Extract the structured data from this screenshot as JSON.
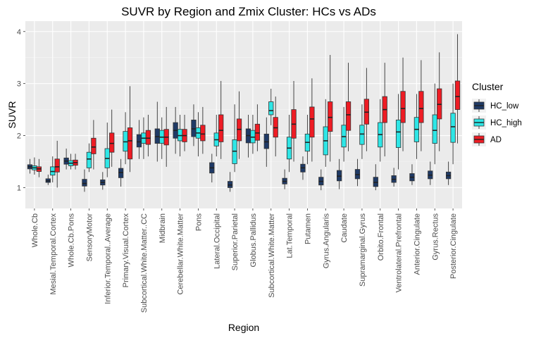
{
  "chart_data": {
    "type": "boxplot",
    "title": "SUVR by Region and Zmix Cluster: HCs vs ADs",
    "xlabel": "Region",
    "ylabel": "SUVR",
    "ylim": [
      0.6,
      4.2
    ],
    "yticks": [
      1,
      2,
      3,
      4
    ],
    "grid": true,
    "legend": {
      "title": "Cluster",
      "position": "right"
    },
    "categories": [
      "Whole.Cb",
      "Mesial.Temporal.Cortex",
      "Whole.Cb.Pons",
      "SensoryMotor",
      "Inferior.Temporal..Average",
      "Primary.Visual.Cortex",
      "Subcortical.White.Matter..CC",
      "Midbrain",
      "Cerebellar.White.Matter",
      "Pons",
      "Lateral.Occipital",
      "Superior.Parietal",
      "Globus.Pallidus",
      "Subcortical.White.Matter",
      "Lat.Temporal",
      "Putamen",
      "Gyrus.Angularis",
      "Caudate",
      "Supramarginal.Gyrus",
      "Orbito.Frontal",
      "Ventrolateral.Prefrontal",
      "Anterior.Cingulate",
      "Gyrus.Rectus",
      "Posterior.Cingulate"
    ],
    "series": [
      {
        "name": "HC_low",
        "color": "#1f3a66",
        "stats": [
          [
            1.27,
            1.36,
            1.4,
            1.44,
            1.55
          ],
          [
            1.05,
            1.1,
            1.13,
            1.17,
            1.25
          ],
          [
            1.35,
            1.45,
            1.51,
            1.57,
            1.75
          ],
          [
            0.92,
            1.03,
            1.08,
            1.16,
            1.35
          ],
          [
            0.96,
            1.05,
            1.1,
            1.15,
            1.3
          ],
          [
            1.02,
            1.19,
            1.29,
            1.37,
            1.55
          ],
          [
            1.55,
            1.78,
            1.88,
            2.02,
            2.3
          ],
          [
            1.5,
            1.85,
            1.98,
            2.13,
            2.65
          ],
          [
            1.65,
            1.95,
            2.1,
            2.25,
            2.55
          ],
          [
            1.8,
            1.98,
            2.13,
            2.3,
            2.6
          ],
          [
            1.1,
            1.28,
            1.38,
            1.48,
            1.65
          ],
          [
            0.92,
            1.0,
            1.05,
            1.12,
            1.3
          ],
          [
            1.58,
            1.86,
            2.0,
            2.13,
            2.4
          ],
          [
            1.4,
            1.75,
            1.88,
            2.03,
            2.35
          ],
          [
            0.97,
            1.07,
            1.12,
            1.18,
            1.35
          ],
          [
            1.15,
            1.3,
            1.38,
            1.45,
            1.6
          ],
          [
            0.95,
            1.05,
            1.12,
            1.2,
            1.35
          ],
          [
            0.97,
            1.13,
            1.22,
            1.33,
            1.55
          ],
          [
            1.03,
            1.17,
            1.25,
            1.35,
            1.55
          ],
          [
            0.95,
            1.02,
            1.1,
            1.2,
            1.45
          ],
          [
            1.02,
            1.1,
            1.16,
            1.23,
            1.38
          ],
          [
            1.05,
            1.13,
            1.2,
            1.27,
            1.45
          ],
          [
            1.05,
            1.17,
            1.24,
            1.32,
            1.5
          ],
          [
            1.05,
            1.17,
            1.23,
            1.3,
            1.5
          ]
        ]
      },
      {
        "name": "HC_high",
        "color": "#2ee6e6",
        "stats": [
          [
            1.25,
            1.34,
            1.38,
            1.42,
            1.58
          ],
          [
            1.1,
            1.24,
            1.31,
            1.4,
            1.6
          ],
          [
            1.35,
            1.42,
            1.47,
            1.52,
            1.65
          ],
          [
            1.3,
            1.38,
            1.55,
            1.68,
            1.85
          ],
          [
            1.2,
            1.38,
            1.56,
            1.75,
            2.25
          ],
          [
            1.45,
            1.7,
            1.88,
            2.08,
            2.45
          ],
          [
            1.55,
            1.85,
            1.95,
            2.05,
            2.35
          ],
          [
            1.55,
            1.85,
            1.97,
            2.1,
            2.35
          ],
          [
            1.6,
            1.9,
            2.0,
            2.12,
            2.4
          ],
          [
            1.6,
            1.95,
            2.05,
            2.15,
            2.45
          ],
          [
            1.6,
            1.8,
            1.92,
            2.05,
            2.4
          ],
          [
            1.3,
            1.46,
            1.7,
            1.92,
            2.6
          ],
          [
            1.65,
            1.86,
            1.97,
            2.1,
            2.4
          ],
          [
            2.2,
            2.4,
            2.48,
            2.65,
            2.9
          ],
          [
            1.3,
            1.55,
            1.76,
            1.97,
            2.4
          ],
          [
            1.45,
            1.7,
            1.87,
            2.03,
            2.4
          ],
          [
            1.4,
            1.63,
            1.9,
            2.17,
            2.7
          ],
          [
            1.5,
            1.78,
            1.98,
            2.2,
            2.55
          ],
          [
            1.55,
            1.83,
            2.03,
            2.2,
            2.6
          ],
          [
            1.5,
            1.78,
            2.02,
            2.25,
            2.7
          ],
          [
            1.35,
            1.77,
            2.07,
            2.3,
            2.8
          ],
          [
            1.55,
            1.88,
            2.12,
            2.35,
            2.8
          ],
          [
            1.45,
            1.85,
            2.1,
            2.4,
            3.0
          ],
          [
            1.45,
            1.87,
            2.17,
            2.43,
            3.0
          ]
        ]
      },
      {
        "name": "AD",
        "color": "#ee1c24",
        "stats": [
          [
            1.2,
            1.31,
            1.36,
            1.4,
            1.55
          ],
          [
            1.0,
            1.3,
            1.4,
            1.55,
            1.9
          ],
          [
            1.35,
            1.43,
            1.48,
            1.53,
            1.65
          ],
          [
            1.35,
            1.65,
            1.78,
            1.95,
            2.3
          ],
          [
            1.4,
            1.68,
            1.85,
            2.05,
            2.5
          ],
          [
            1.3,
            1.55,
            1.9,
            2.15,
            2.95
          ],
          [
            1.6,
            1.83,
            1.95,
            2.1,
            2.4
          ],
          [
            1.4,
            1.82,
            1.97,
            2.12,
            2.55
          ],
          [
            1.7,
            1.88,
            2.0,
            2.12,
            2.4
          ],
          [
            1.65,
            1.9,
            2.03,
            2.2,
            2.55
          ],
          [
            1.55,
            1.88,
            2.1,
            2.4,
            3.05
          ],
          [
            1.55,
            1.9,
            2.12,
            2.32,
            2.85
          ],
          [
            1.7,
            1.91,
            2.05,
            2.22,
            2.6
          ],
          [
            1.6,
            1.97,
            2.15,
            2.35,
            2.75
          ],
          [
            1.5,
            1.95,
            2.22,
            2.5,
            3.05
          ],
          [
            1.5,
            1.97,
            2.32,
            2.55,
            3.1
          ],
          [
            1.5,
            2.08,
            2.35,
            2.65,
            3.55
          ],
          [
            1.7,
            2.1,
            2.4,
            2.65,
            3.4
          ],
          [
            1.7,
            2.22,
            2.45,
            2.7,
            3.3
          ],
          [
            1.6,
            2.25,
            2.5,
            2.75,
            3.4
          ],
          [
            1.7,
            2.25,
            2.52,
            2.85,
            3.5
          ],
          [
            1.7,
            2.25,
            2.52,
            2.85,
            3.45
          ],
          [
            1.7,
            2.32,
            2.6,
            2.9,
            3.6
          ],
          [
            1.85,
            2.5,
            2.75,
            3.05,
            3.95
          ]
        ]
      }
    ]
  }
}
